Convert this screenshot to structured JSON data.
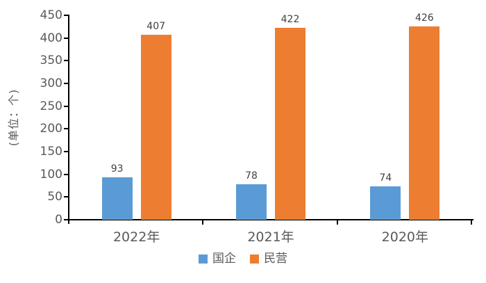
{
  "chart_data": {
    "type": "bar",
    "title": "",
    "categories": [
      "2022年",
      "2021年",
      "2020年"
    ],
    "series": [
      {
        "name": "国企",
        "color": "#5B9BD5",
        "values": [
          93,
          78,
          74
        ]
      },
      {
        "name": "民营",
        "color": "#ED7D31",
        "values": [
          407,
          422,
          426
        ]
      }
    ],
    "xlabel": "",
    "ylabel": "(单位：个)",
    "ylim": [
      0,
      450
    ],
    "yticks": [
      0,
      50,
      100,
      150,
      200,
      250,
      300,
      350,
      400,
      450
    ],
    "grid": false,
    "legend_position": "bottom",
    "data_labels_shown": true
  },
  "colors": {
    "axis": "#000000",
    "tick_label": "#595959",
    "data_label": "#404040",
    "series_blue": "#5B9BD5",
    "series_orange": "#ED7D31",
    "background": "#FFFFFF"
  }
}
